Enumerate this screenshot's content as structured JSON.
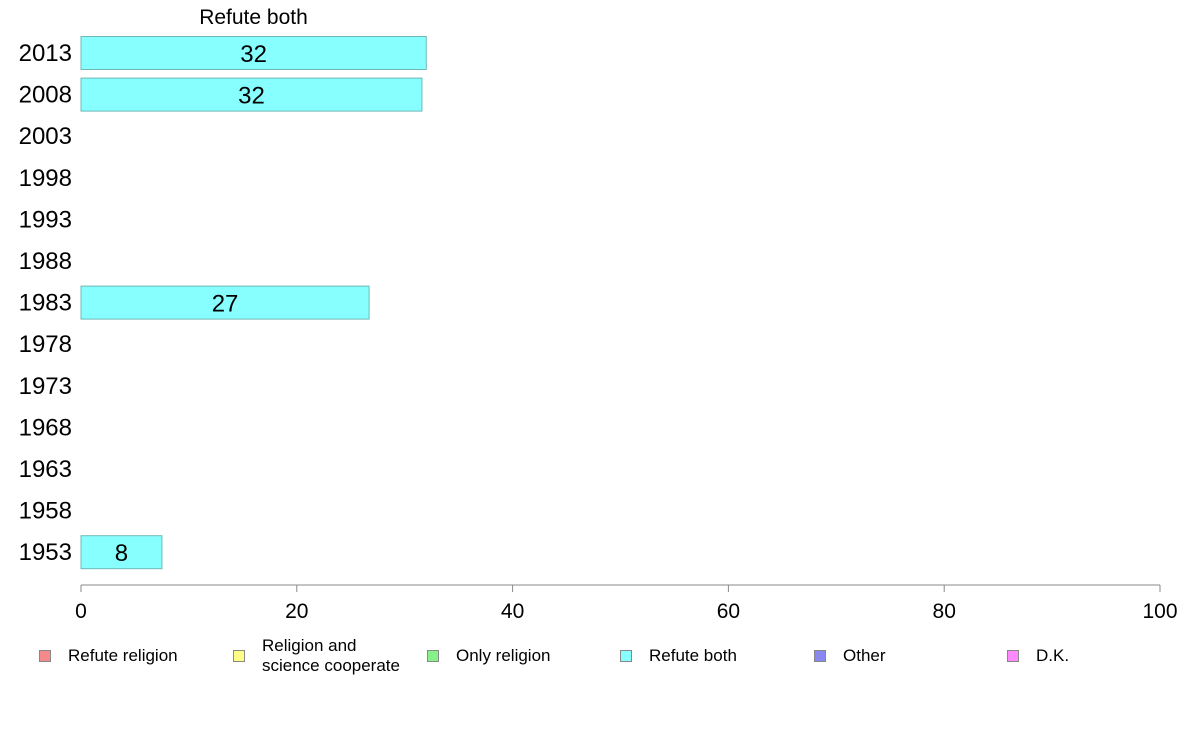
{
  "chart_data": {
    "type": "bar",
    "orientation": "horizontal",
    "panel_title": "Refute both",
    "categories": [
      "2013",
      "2008",
      "2003",
      "1998",
      "1993",
      "1988",
      "1983",
      "1978",
      "1973",
      "1968",
      "1963",
      "1958",
      "1953"
    ],
    "series": [
      {
        "name": "Refute both",
        "color": "#88ffff",
        "values": [
          32,
          32,
          null,
          null,
          null,
          null,
          27,
          null,
          null,
          null,
          null,
          null,
          8
        ],
        "exact_values": [
          32.0,
          31.6,
          null,
          null,
          null,
          null,
          26.7,
          null,
          null,
          null,
          null,
          null,
          7.5
        ]
      }
    ],
    "xlim": [
      0,
      100
    ],
    "xticks": [
      "0",
      "20",
      "40",
      "60",
      "80",
      "100"
    ],
    "grid": false,
    "legend_position": "bottom",
    "legend": [
      {
        "label": "Refute religion",
        "color": "#f48a8a"
      },
      {
        "label_lines": [
          "Religion and",
          "science cooperate"
        ],
        "color": "#ffff88"
      },
      {
        "label": "Only religion",
        "color": "#88f088"
      },
      {
        "label": "Refute both",
        "color": "#88ffff"
      },
      {
        "label": "Other",
        "color": "#8888f0"
      },
      {
        "label": "D.K.",
        "color": "#ff88ff"
      }
    ]
  }
}
